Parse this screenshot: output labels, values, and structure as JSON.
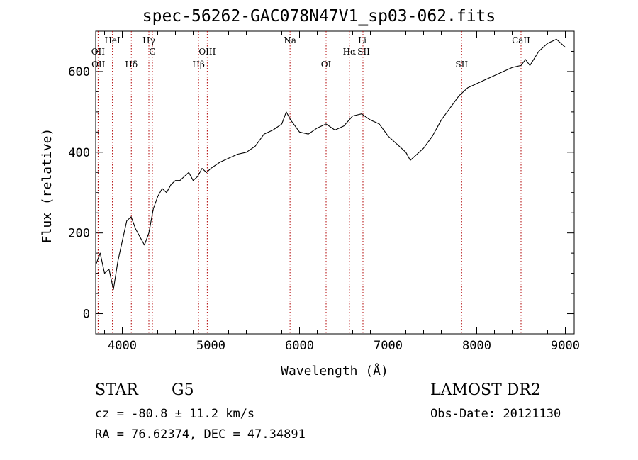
{
  "header": {
    "title": "spec-56262-GAC078N47V1_sp03-062.fits"
  },
  "footer": {
    "object_class": "STAR",
    "subclass": "G5",
    "survey": "LAMOST DR2",
    "cz": "cz = -80.8 ± 11.2 km/s",
    "obs_date": "Obs-Date: 20121130",
    "coords": "RA =  76.62374, DEC =  47.34891"
  },
  "chart_data": {
    "type": "line",
    "title": "spec-56262-GAC078N47V1_sp03-062.fits",
    "xlabel": "Wavelength (Å)",
    "ylabel": "Flux (relative)",
    "xlim": [
      3700,
      9100
    ],
    "ylim": [
      -50,
      700
    ],
    "xticks": [
      4000,
      5000,
      6000,
      7000,
      8000,
      9000
    ],
    "yticks": [
      0,
      200,
      400,
      600
    ],
    "grid": false,
    "line_color": "#000000",
    "marker_color": "#b00000",
    "series": [
      {
        "x": [
          3700,
          3750,
          3800,
          3850,
          3900,
          3950,
          4000,
          4050,
          4100,
          4150,
          4200,
          4250,
          4300,
          4350,
          4400,
          4450,
          4500,
          4550,
          4600,
          4650,
          4700,
          4750,
          4800,
          4850,
          4900,
          4950,
          5000,
          5100,
          5200,
          5300,
          5400,
          5500,
          5600,
          5700,
          5800,
          5850,
          5900,
          5950,
          6000,
          6100,
          6200,
          6300,
          6400,
          6500,
          6600,
          6700,
          6800,
          6900,
          7000,
          7100,
          7200,
          7250,
          7300,
          7400,
          7500,
          7600,
          7700,
          7800,
          7900,
          8000,
          8100,
          8200,
          8300,
          8400,
          8500,
          8550,
          8600,
          8700,
          8800,
          8900,
          9000
        ],
        "y": [
          120,
          150,
          100,
          110,
          60,
          130,
          180,
          230,
          240,
          210,
          190,
          170,
          200,
          260,
          290,
          310,
          300,
          320,
          330,
          330,
          340,
          350,
          330,
          340,
          360,
          350,
          360,
          375,
          385,
          395,
          400,
          415,
          445,
          455,
          470,
          500,
          480,
          465,
          450,
          445,
          460,
          470,
          455,
          465,
          490,
          495,
          480,
          470,
          440,
          420,
          400,
          380,
          390,
          410,
          440,
          480,
          510,
          540,
          560,
          570,
          580,
          590,
          600,
          610,
          615,
          630,
          615,
          650,
          670,
          680,
          660
        ]
      }
    ],
    "line_markers": [
      {
        "label": "OII",
        "x": 3727,
        "row": 2
      },
      {
        "label": "OII",
        "x": 3730,
        "row": 3
      },
      {
        "label": "HeI",
        "x": 3889,
        "row": 1
      },
      {
        "label": "Hδ",
        "x": 4102,
        "row": 3
      },
      {
        "label": "Hγ",
        "x": 4300,
        "row": 1
      },
      {
        "label": "G",
        "x": 4340,
        "row": 2
      },
      {
        "label": "Hβ",
        "x": 4861,
        "row": 3
      },
      {
        "label": "OIII",
        "x": 4959,
        "row": 2
      },
      {
        "label": "Na",
        "x": 5893,
        "row": 1
      },
      {
        "label": "OI",
        "x": 6300,
        "row": 3
      },
      {
        "label": "Hα",
        "x": 6563,
        "row": 2
      },
      {
        "label": "Li",
        "x": 6708,
        "row": 1
      },
      {
        "label": "SII",
        "x": 6724,
        "row": 2
      },
      {
        "label": "SII",
        "x": 7830,
        "row": 3
      },
      {
        "label": "CaII",
        "x": 8500,
        "row": 1
      }
    ]
  }
}
